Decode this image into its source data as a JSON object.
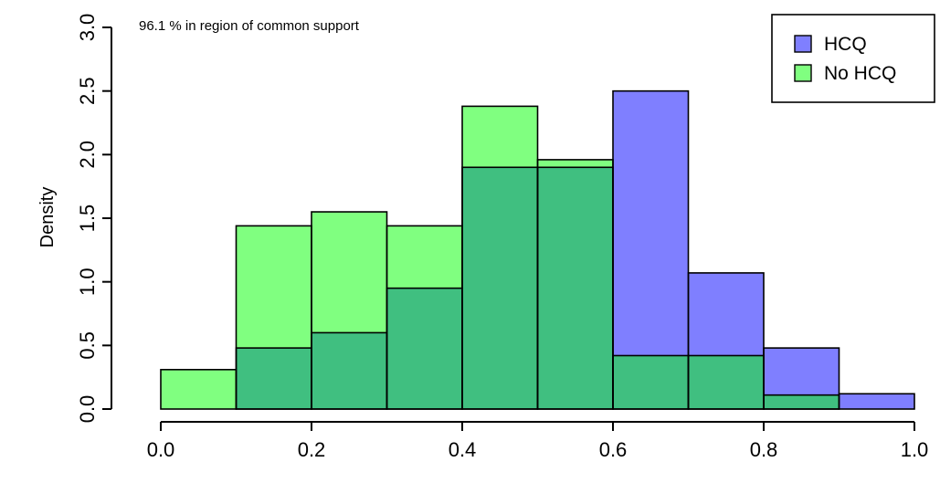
{
  "chart_data": {
    "type": "bar",
    "subtype": "overlaid-histogram",
    "title": "",
    "xlabel": "",
    "ylabel": "Density",
    "annotation": "96.1 % in region of common support",
    "xlim": [
      0.0,
      1.0
    ],
    "ylim": [
      0.0,
      3.0
    ],
    "x_ticks": [
      "0.0",
      "0.2",
      "0.4",
      "0.6",
      "0.8",
      "1.0"
    ],
    "y_ticks": [
      "0.0",
      "0.5",
      "1.0",
      "1.5",
      "2.0",
      "2.5",
      "3.0"
    ],
    "bin_edges": [
      0.0,
      0.1,
      0.2,
      0.3,
      0.4,
      0.5,
      0.6,
      0.7,
      0.8,
      0.9,
      1.0
    ],
    "grid": false,
    "legend_position": "top-right",
    "series": [
      {
        "name": "HCQ",
        "color": "#7f7fff",
        "values": [
          0.0,
          0.48,
          0.6,
          0.95,
          1.9,
          1.9,
          2.5,
          1.07,
          0.48,
          0.12
        ]
      },
      {
        "name": "No HCQ",
        "color": "#80ff80",
        "values": [
          0.31,
          1.44,
          1.55,
          1.44,
          2.38,
          1.96,
          0.42,
          0.42,
          0.11,
          0.0
        ]
      }
    ],
    "overlap_color": "#40bf80"
  }
}
